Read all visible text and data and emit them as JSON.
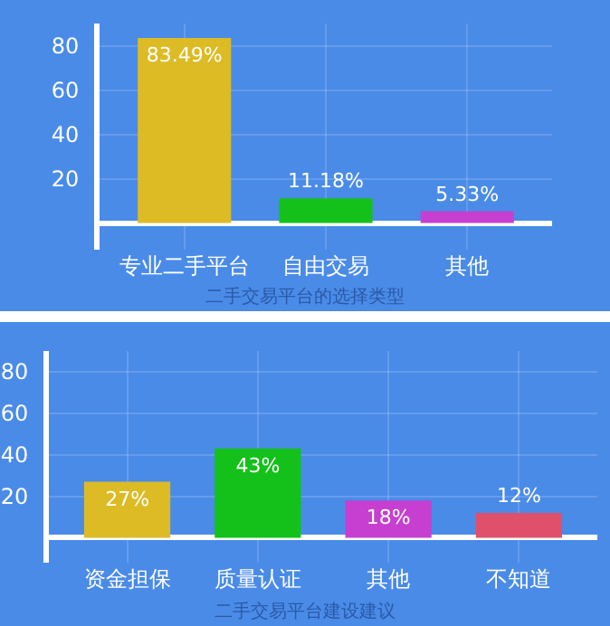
{
  "chart_data": [
    {
      "type": "bar",
      "title": "二手交易平台的选择类型",
      "categories": [
        "专业二手平台",
        "自由交易",
        "其他"
      ],
      "values": [
        83.49,
        11.18,
        5.33
      ],
      "colors": [
        "#dcbb25",
        "#13c11a",
        "#c63fd0"
      ],
      "value_labels": [
        "83.49%",
        "11.18%",
        "5.33%"
      ],
      "ylim": [
        -12,
        90
      ],
      "yticks": [
        20,
        40,
        60,
        80
      ],
      "grid": true
    },
    {
      "type": "bar",
      "title": "二手交易平台建设建议",
      "categories": [
        "资金担保",
        "质量认证",
        "其他",
        "不知道"
      ],
      "values": [
        27,
        43,
        18,
        12
      ],
      "colors": [
        "#dcbb25",
        "#13c11a",
        "#c63fd0",
        "#e0506a"
      ],
      "value_labels": [
        "27%",
        "43%",
        "18%",
        "12%"
      ],
      "ylim": [
        -12,
        90
      ],
      "yticks": [
        20,
        40,
        60,
        80
      ],
      "grid": true
    }
  ]
}
